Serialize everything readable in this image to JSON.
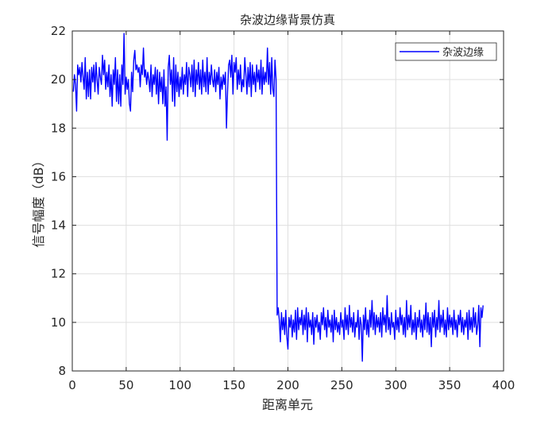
{
  "chart_data": {
    "type": "line",
    "title": "杂波边缘背景仿真",
    "xlabel": "距离单元",
    "ylabel": "信号幅度（dB）",
    "xlim": [
      0,
      400
    ],
    "ylim": [
      8,
      22
    ],
    "xticks": [
      0,
      50,
      100,
      150,
      200,
      250,
      300,
      350,
      400
    ],
    "yticks": [
      8,
      10,
      12,
      14,
      16,
      18,
      20,
      22
    ],
    "xtick_labels": [
      "0",
      "50",
      "100",
      "150",
      "200",
      "250",
      "300",
      "350",
      "400"
    ],
    "ytick_labels": [
      "8",
      "10",
      "12",
      "14",
      "16",
      "18",
      "20",
      "22"
    ],
    "grid": true,
    "legend_position": "top-right",
    "series": [
      {
        "name": "杂波边缘",
        "color": "#0000ff",
        "x_start": 1,
        "x_step": 1,
        "values": [
          19.5,
          20.2,
          19.8,
          18.7,
          20.6,
          20.2,
          20.5,
          19.9,
          20.7,
          20.1,
          19.6,
          20.9,
          19.2,
          20.3,
          19.3,
          20.4,
          19.2,
          20.5,
          19.9,
          20.6,
          19.5,
          20.7,
          20.0,
          19.4,
          20.5,
          20.1,
          19.8,
          21.0,
          20.2,
          20.8,
          19.6,
          20.3,
          19.7,
          20.6,
          19.3,
          20.2,
          18.9,
          20.4,
          19.8,
          20.9,
          19.1,
          20.4,
          19.0,
          20.2,
          18.9,
          20.6,
          19.8,
          21.9,
          19.4,
          20.1,
          19.6,
          20.0,
          19.0,
          18.7,
          20.3,
          19.5,
          20.8,
          21.2,
          20.4,
          20.6,
          20.3,
          20.5,
          19.7,
          20.6,
          20.2,
          21.3,
          20.1,
          20.4,
          19.8,
          20.3,
          20.0,
          19.5,
          20.6,
          19.3,
          20.2,
          19.8,
          20.5,
          19.4,
          20.4,
          19.0,
          20.3,
          19.5,
          20.1,
          19.0,
          20.4,
          18.9,
          19.7,
          17.5,
          20.5,
          21.0,
          19.8,
          20.4,
          19.1,
          20.9,
          18.9,
          20.6,
          19.5,
          20.3,
          19.3,
          20.1,
          19.6,
          20.5,
          19.4,
          20.2,
          19.8,
          20.7,
          19.3,
          20.5,
          20.2,
          19.7,
          20.6,
          19.5,
          20.8,
          19.3,
          20.4,
          19.8,
          20.7,
          19.6,
          20.4,
          19.4,
          20.8,
          19.7,
          20.3,
          19.5,
          20.9,
          19.4,
          20.3,
          19.8,
          20.6,
          20.0,
          19.7,
          20.4,
          19.5,
          20.3,
          19.8,
          20.5,
          19.2,
          20.1,
          19.6,
          20.2,
          19.8,
          20.3,
          18.0,
          19.5,
          20.6,
          20.8,
          20.1,
          21.0,
          19.4,
          20.7,
          20.3,
          20.9,
          19.6,
          20.4,
          19.8,
          20.6,
          19.5,
          20.0,
          19.7,
          20.9,
          20.2,
          19.4,
          20.5,
          19.7,
          20.7,
          19.3,
          20.6,
          19.8,
          20.3,
          19.5,
          20.6,
          19.9,
          20.4,
          19.6,
          20.8,
          19.4,
          20.5,
          19.8,
          20.3,
          19.9,
          21.3,
          19.8,
          20.7,
          19.4,
          20.9,
          19.6,
          19.3,
          20.8,
          20.0,
          10.3,
          10.6,
          10.1,
          9.2,
          10.4,
          9.7,
          10.2,
          9.5,
          10.5,
          9.4,
          8.9,
          10.2,
          9.8,
          10.3,
          9.4,
          10.1,
          9.6,
          10.5,
          9.3,
          10.6,
          9.7,
          10.2,
          9.9,
          10.5,
          9.5,
          10.3,
          9.7,
          10.6,
          9.2,
          10.4,
          9.8,
          10.1,
          9.5,
          10.4,
          9.1,
          10.2,
          9.8,
          10.3,
          9.6,
          10.0,
          9.3,
          10.4,
          9.9,
          10.6,
          9.7,
          10.2,
          9.4,
          10.5,
          9.8,
          10.1,
          9.6,
          10.3,
          9.2,
          10.5,
          9.7,
          10.2,
          9.6,
          10.0,
          9.5,
          10.4,
          9.8,
          10.1,
          9.3,
          10.6,
          9.7,
          10.3,
          9.5,
          10.7,
          9.8,
          10.2,
          9.6,
          10.4,
          9.4,
          10.0,
          9.8,
          10.5,
          9.3,
          10.2,
          9.9,
          8.4,
          10.3,
          9.7,
          10.6,
          9.5,
          10.1,
          9.4,
          10.5,
          9.8,
          10.9,
          9.7,
          10.4,
          9.5,
          10.3,
          9.8,
          10.2,
          9.6,
          10.4,
          9.4,
          10.6,
          9.9,
          10.3,
          9.6,
          11.1,
          9.7,
          10.2,
          9.5,
          10.4,
          9.8,
          10.0,
          9.3,
          10.5,
          9.7,
          10.2,
          9.6,
          10.6,
          9.9,
          10.3,
          9.5,
          10.2,
          9.4,
          10.9,
          9.7,
          10.3,
          9.8,
          10.7,
          9.5,
          10.1,
          9.6,
          10.4,
          9.3,
          10.2,
          9.8,
          10.5,
          9.6,
          10.1,
          9.4,
          10.3,
          9.7,
          10.8,
          9.6,
          10.4,
          9.5,
          10.2,
          9.0,
          10.4,
          9.8,
          10.5,
          9.4,
          10.2,
          9.7,
          10.9,
          9.6,
          10.3,
          9.8,
          10.5,
          9.5,
          10.1,
          9.4,
          10.6,
          9.7,
          10.3,
          9.8,
          10.2,
          9.5,
          10.5,
          9.7,
          10.1,
          9.4,
          10.3,
          9.9,
          10.5,
          9.6,
          10.2,
          9.5,
          10.1,
          9.8,
          10.4,
          9.3,
          10.5,
          9.7,
          10.2,
          9.6,
          10.6,
          9.8,
          10.4,
          9.5,
          9.9,
          10.7,
          9.0,
          10.6,
          10.2,
          10.7
        ]
      }
    ]
  }
}
